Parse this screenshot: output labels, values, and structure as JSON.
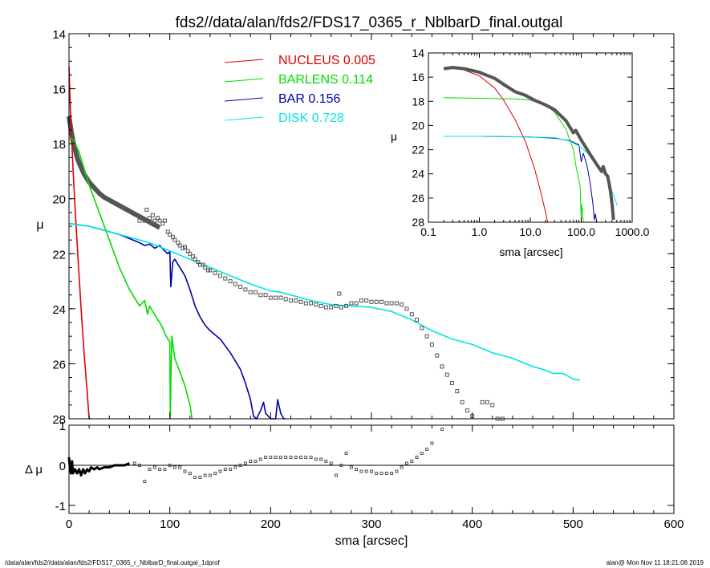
{
  "footer": {
    "left": "/data/alan/fds2//data/alan/fds2/FDS17_0365_r_NblbarD_final.outgal_1dprof",
    "right": "alan@  Mon Nov 11 18:21:08 2019"
  },
  "colors": {
    "nucleus": "#e00000",
    "barlens": "#00dd00",
    "bar": "#0000aa",
    "disk": "#00e5e5",
    "data": "#555555"
  },
  "chart_data": [
    {
      "type": "line",
      "title": "fds2//data/alan/fds2/FDS17_0365_r_NblbarD_final.outgal",
      "xlabel": "",
      "ylabel": "μ",
      "xlim": [
        0,
        600
      ],
      "ylim": [
        28,
        14
      ],
      "xticks": [
        0,
        100,
        200,
        300,
        400,
        500,
        600
      ],
      "yticks": [
        14,
        16,
        18,
        20,
        22,
        24,
        26,
        28
      ],
      "legend": {
        "position": "top-center",
        "entries": [
          {
            "name": "NUCLEUS",
            "value": "0.005",
            "color": "#e00000"
          },
          {
            "name": "BARLENS",
            "value": "0.114",
            "color": "#00dd00"
          },
          {
            "name": "BAR",
            "value": "0.156",
            "color": "#0000aa"
          },
          {
            "name": "DISK",
            "value": "0.728",
            "color": "#00e5e5"
          }
        ]
      },
      "series": [
        {
          "name": "NUCLEUS",
          "color": "#e00000",
          "x": [
            0,
            1,
            2,
            3,
            4,
            6,
            8,
            10,
            12,
            15,
            18,
            20,
            22
          ],
          "y": [
            15.2,
            16.4,
            17.3,
            18.1,
            18.9,
            20.3,
            21.6,
            22.8,
            24.0,
            25.6,
            27.0,
            28.0,
            28.6
          ]
        },
        {
          "name": "BARLENS",
          "color": "#00dd00",
          "x": [
            0,
            2,
            5,
            10,
            15,
            20,
            25,
            30,
            35,
            40,
            45,
            50,
            55,
            60,
            65,
            70,
            75,
            78,
            80,
            83,
            85,
            88,
            90,
            93,
            95,
            98,
            100,
            100.5,
            101,
            102,
            105,
            110,
            115,
            120,
            122
          ],
          "y": [
            17.8,
            17.8,
            17.9,
            18.3,
            18.9,
            19.5,
            20.0,
            20.5,
            21.0,
            21.5,
            22.0,
            22.5,
            22.9,
            23.3,
            23.6,
            23.9,
            23.7,
            24.2,
            23.9,
            24.1,
            24.2,
            24.4,
            24.5,
            24.7,
            24.9,
            25.1,
            25.2,
            28.0,
            26.8,
            25.0,
            25.8,
            26.3,
            26.8,
            27.5,
            28.0
          ]
        },
        {
          "name": "BAR",
          "color": "#0000aa",
          "x": [
            0,
            10,
            20,
            30,
            40,
            50,
            60,
            70,
            75,
            80,
            85,
            90,
            95,
            98,
            100,
            101,
            103,
            105,
            110,
            115,
            120,
            125,
            130,
            135,
            140,
            150,
            160,
            170,
            175,
            180,
            183,
            186,
            190,
            193,
            195,
            200,
            205,
            207,
            210,
            213,
            215
          ],
          "y": [
            20.9,
            20.95,
            21.0,
            21.1,
            21.2,
            21.3,
            21.45,
            21.6,
            21.7,
            21.65,
            21.8,
            21.7,
            21.9,
            22.0,
            21.9,
            23.2,
            22.3,
            22.2,
            22.5,
            22.8,
            23.3,
            23.9,
            24.3,
            24.6,
            24.8,
            25.1,
            25.6,
            26.2,
            26.7,
            27.3,
            27.9,
            28.2,
            27.7,
            27.4,
            27.8,
            28.4,
            28.1,
            27.3,
            27.8,
            28.1,
            28.5
          ]
        },
        {
          "name": "DISK",
          "color": "#00e5e5",
          "x": [
            0,
            20,
            40,
            60,
            80,
            100,
            120,
            140,
            160,
            180,
            200,
            210,
            220,
            240,
            260,
            280,
            300,
            320,
            340,
            360,
            380,
            400,
            420,
            440,
            460,
            470,
            480,
            490,
            500,
            507
          ],
          "y": [
            20.9,
            21.0,
            21.2,
            21.4,
            21.6,
            21.9,
            22.2,
            22.5,
            22.8,
            23.1,
            23.35,
            23.4,
            23.5,
            23.7,
            23.85,
            23.9,
            23.95,
            24.1,
            24.4,
            24.8,
            25.1,
            25.3,
            25.6,
            25.8,
            26.1,
            26.2,
            26.35,
            26.35,
            26.55,
            26.6
          ]
        },
        {
          "name": "data",
          "color": "#555555",
          "marker": "square",
          "x": [
            70,
            75,
            77,
            80,
            83,
            85,
            88,
            90,
            93,
            95,
            98,
            100,
            103,
            105,
            108,
            110,
            113,
            115,
            118,
            120,
            123,
            125,
            128,
            130,
            133,
            135,
            138,
            140,
            145,
            150,
            155,
            160,
            165,
            170,
            175,
            180,
            185,
            190,
            195,
            200,
            205,
            210,
            215,
            220,
            225,
            230,
            235,
            240,
            245,
            250,
            255,
            260,
            265,
            268,
            270,
            275,
            280,
            285,
            290,
            295,
            300,
            305,
            310,
            315,
            320,
            325,
            330,
            335,
            340,
            345,
            350,
            355,
            360,
            365,
            370,
            375,
            380,
            385,
            390,
            395,
            400,
            410,
            415,
            420,
            425,
            430
          ],
          "y": [
            20.8,
            20.8,
            20.4,
            20.7,
            20.6,
            20.8,
            20.7,
            20.8,
            20.9,
            20.8,
            21.2,
            21.3,
            21.4,
            21.5,
            21.6,
            21.7,
            21.8,
            21.75,
            21.9,
            22.0,
            22.1,
            22.2,
            22.3,
            22.4,
            22.4,
            22.5,
            22.6,
            22.6,
            22.7,
            22.8,
            22.9,
            23.0,
            23.1,
            23.2,
            23.3,
            23.4,
            23.4,
            23.5,
            23.5,
            23.6,
            23.6,
            23.6,
            23.65,
            23.7,
            23.7,
            23.75,
            23.8,
            23.8,
            23.85,
            23.9,
            23.95,
            23.95,
            23.9,
            23.45,
            23.95,
            23.9,
            23.8,
            23.8,
            23.7,
            23.7,
            23.75,
            23.75,
            23.75,
            23.8,
            23.8,
            23.8,
            23.85,
            24.0,
            24.2,
            24.4,
            24.7,
            25.0,
            25.3,
            25.7,
            26.1,
            26.4,
            26.7,
            27.0,
            27.4,
            27.7,
            27.9,
            27.4,
            27.4,
            27.5,
            28.0,
            28.0
          ]
        }
      ],
      "thick_profile": {
        "color": "#555555",
        "x": [
          0,
          2,
          4,
          6,
          8,
          10,
          15,
          20,
          25,
          30,
          35,
          40,
          45,
          50,
          55,
          60,
          65,
          70,
          75,
          80,
          85,
          90
        ],
        "y": [
          17.0,
          17.5,
          17.9,
          18.2,
          18.5,
          18.7,
          19.1,
          19.4,
          19.6,
          19.8,
          19.95,
          20.05,
          20.15,
          20.25,
          20.35,
          20.45,
          20.55,
          20.65,
          20.75,
          20.85,
          20.95,
          21.05
        ]
      }
    },
    {
      "type": "scatter",
      "title": "",
      "xlabel": "sma [arcsec]",
      "ylabel": "Δ μ",
      "xlim": [
        0,
        600
      ],
      "ylim": [
        -1.2,
        1.0
      ],
      "xticks": [
        0,
        100,
        200,
        300,
        400,
        500,
        600
      ],
      "yticks": [
        -1,
        0,
        1
      ],
      "series": [
        {
          "name": "residual_thick",
          "color": "#000000",
          "x": [
            0,
            1,
            2,
            3,
            4,
            6,
            8,
            10,
            12,
            14,
            16,
            18,
            20,
            22,
            25,
            28,
            30,
            35,
            40,
            45,
            50,
            55,
            60
          ],
          "y": [
            0.2,
            -0.1,
            -0.2,
            0.1,
            -0.2,
            -0.1,
            -0.2,
            -0.1,
            -0.25,
            -0.1,
            -0.2,
            -0.1,
            -0.15,
            -0.05,
            -0.1,
            -0.05,
            -0.1,
            -0.05,
            -0.05,
            0.0,
            0.0,
            0.0,
            0.05
          ]
        },
        {
          "name": "residual",
          "color": "#555555",
          "x": [
            65,
            70,
            75,
            80,
            85,
            90,
            95,
            100,
            105,
            110,
            115,
            120,
            125,
            130,
            135,
            140,
            145,
            150,
            155,
            160,
            165,
            170,
            175,
            180,
            185,
            190,
            195,
            200,
            205,
            210,
            215,
            220,
            225,
            230,
            235,
            240,
            245,
            250,
            255,
            260,
            265,
            270,
            275,
            280,
            285,
            290,
            295,
            300,
            305,
            310,
            315,
            320,
            325,
            330,
            335,
            340,
            345,
            350,
            355,
            360,
            370,
            380
          ],
          "y": [
            0.05,
            0.0,
            -0.4,
            -0.1,
            -0.05,
            -0.1,
            -0.1,
            0.0,
            -0.05,
            -0.05,
            -0.15,
            -0.2,
            -0.3,
            -0.3,
            -0.25,
            -0.25,
            -0.2,
            -0.15,
            -0.1,
            -0.1,
            -0.05,
            0.0,
            0.05,
            0.1,
            0.1,
            0.15,
            0.2,
            0.2,
            0.2,
            0.2,
            0.2,
            0.2,
            0.2,
            0.2,
            0.2,
            0.2,
            0.15,
            0.15,
            0.1,
            0.05,
            -0.25,
            0.0,
            0.3,
            -0.05,
            -0.1,
            -0.15,
            -0.15,
            -0.15,
            -0.2,
            -0.2,
            -0.2,
            -0.2,
            -0.15,
            -0.05,
            0.05,
            0.1,
            0.2,
            0.3,
            0.4,
            0.55,
            0.9,
            1.1
          ]
        }
      ]
    },
    {
      "type": "line",
      "title": "",
      "xlabel": "sma [arcsec]",
      "ylabel": "μ",
      "xscale": "log",
      "xlim": [
        0.1,
        1000.0
      ],
      "ylim": [
        28,
        14
      ],
      "xtick_labels": [
        "0.1",
        "1.0",
        "10.0",
        "100.0",
        "1000.0"
      ],
      "yticks": [
        14,
        16,
        18,
        20,
        22,
        24,
        26,
        28
      ],
      "series": [
        {
          "name": "NUCLEUS",
          "color": "#e00000",
          "x": [
            0.2,
            0.5,
            1,
            2,
            3,
            5,
            8,
            12,
            16,
            20,
            22
          ],
          "y": [
            15.2,
            15.4,
            15.9,
            16.9,
            17.9,
            19.5,
            21.3,
            23.5,
            25.5,
            27.2,
            28.0
          ]
        },
        {
          "name": "BARLENS",
          "color": "#00dd00",
          "x": [
            0.2,
            1,
            5,
            10,
            20,
            30,
            50,
            70,
            80,
            90,
            95,
            100,
            102,
            105,
            110
          ],
          "y": [
            17.7,
            17.75,
            17.8,
            17.9,
            18.3,
            18.9,
            20.3,
            22.0,
            23.5,
            24.5,
            25.0,
            28.0,
            26.5,
            27.0,
            28.0
          ]
        },
        {
          "name": "BAR",
          "color": "#0000aa",
          "x": [
            0.2,
            1,
            10,
            30,
            60,
            90,
            100,
            110,
            130,
            150,
            170,
            180,
            190,
            200
          ],
          "y": [
            20.9,
            20.9,
            20.95,
            21.05,
            21.25,
            21.6,
            23.0,
            22.3,
            23.3,
            24.8,
            26.5,
            27.8,
            27.3,
            28.0
          ]
        },
        {
          "name": "DISK",
          "color": "#00e5e5",
          "x": [
            0.2,
            1,
            10,
            30,
            60,
            100,
            150,
            200,
            250,
            300,
            350,
            400,
            450,
            507
          ],
          "y": [
            20.9,
            20.9,
            20.95,
            21.0,
            21.3,
            21.8,
            22.5,
            23.3,
            23.8,
            24.1,
            24.6,
            25.4,
            26.0,
            26.6
          ]
        },
        {
          "name": "data",
          "color": "#555555",
          "x": [
            0.2,
            0.3,
            0.5,
            0.8,
            1.0,
            2.0,
            3.0,
            5.0,
            8.0,
            12.0,
            20.0,
            30.0,
            50.0,
            70.0,
            78.0,
            100.0,
            150.0,
            200.0,
            250.0,
            270.0,
            300.0,
            330.0,
            350.0,
            370.0,
            390.0,
            410.0,
            430.0
          ],
          "y": [
            15.3,
            15.2,
            15.3,
            15.5,
            15.6,
            16.1,
            16.6,
            17.2,
            17.5,
            17.9,
            18.3,
            18.7,
            19.6,
            20.6,
            20.4,
            21.2,
            22.4,
            23.2,
            23.8,
            23.4,
            24.0,
            24.2,
            24.7,
            25.3,
            26.0,
            26.8,
            27.8
          ]
        }
      ]
    }
  ]
}
